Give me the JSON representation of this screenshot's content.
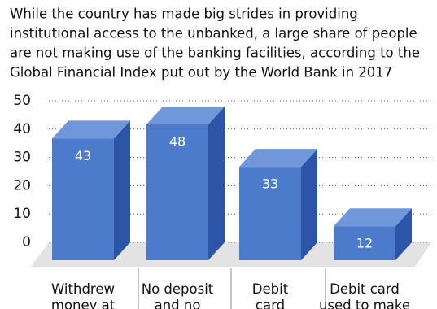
{
  "chart_data": {
    "type": "bar3d",
    "subtitle": [
      "While the country has made big strides in providing",
      "institutional access to the unbanked, a large share of people",
      "are not making use of the banking facilities, according to the",
      "Global Financial Index put out by the World Bank in 2017"
    ],
    "categories": [
      "Withdrew money at",
      "No deposit and no",
      "Debit card",
      "Debit card used to make"
    ],
    "values": [
      43,
      48,
      33,
      12
    ],
    "color": "#4d7bcb",
    "ylim": [
      0,
      50
    ],
    "yticks": [
      0,
      10,
      20,
      30,
      40,
      50
    ],
    "grid": true
  }
}
